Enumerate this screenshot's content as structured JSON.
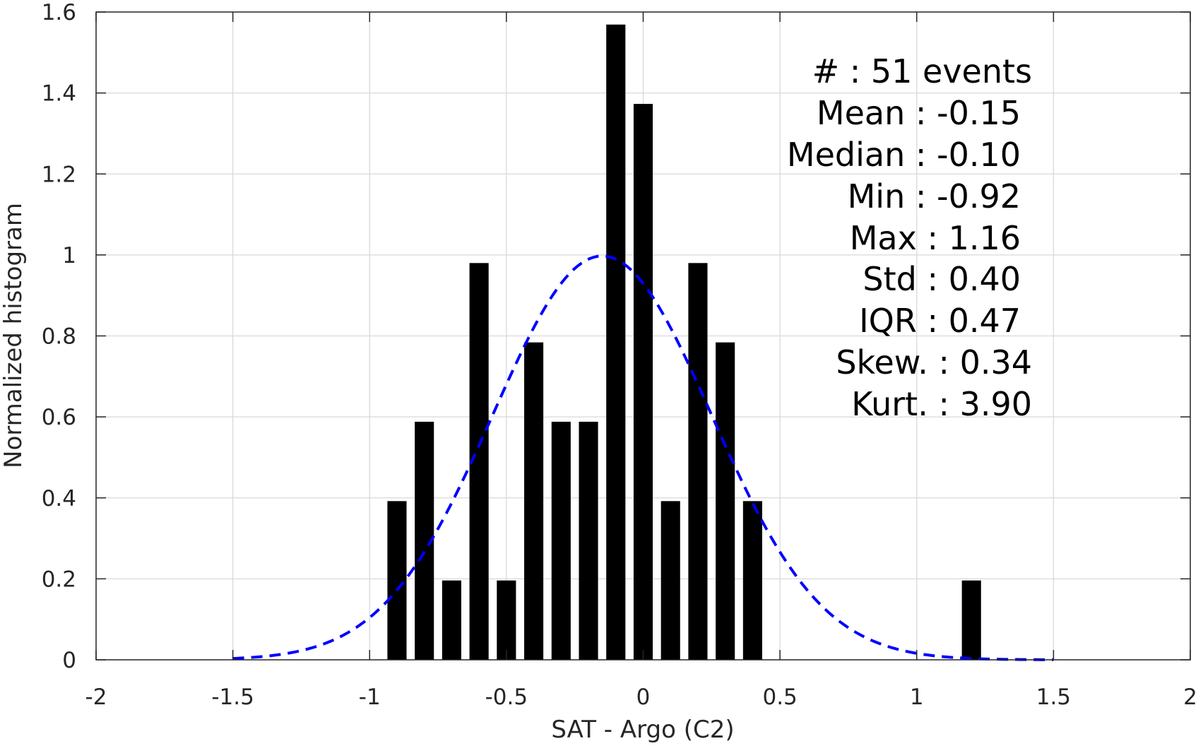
{
  "chart_data": {
    "type": "bar",
    "title": "",
    "xlabel": "SAT - Argo (C2)",
    "ylabel": "Normalized histogram",
    "xlim": [
      -2,
      2
    ],
    "ylim": [
      0,
      1.6
    ],
    "grid": true,
    "bin_width": 0.1,
    "bar_width_fraction": 0.7,
    "x_ticks": [
      -2,
      -1.5,
      -1,
      -0.5,
      0,
      0.5,
      1,
      1.5,
      2
    ],
    "x_tick_labels": [
      "-2",
      "-1.5",
      "-1",
      "-0.5",
      "0",
      "0.5",
      "1",
      "1.5",
      "2"
    ],
    "y_ticks": [
      0,
      0.2,
      0.4,
      0.6,
      0.8,
      1,
      1.2,
      1.4,
      1.6
    ],
    "y_tick_labels": [
      "0",
      "0.2",
      "0.4",
      "0.6",
      "0.8",
      "1",
      "1.2",
      "1.4",
      "1.6"
    ],
    "bar_color": "#000000",
    "bars": {
      "x": [
        -0.9,
        -0.8,
        -0.7,
        -0.6,
        -0.5,
        -0.4,
        -0.3,
        -0.2,
        -0.1,
        0.0,
        0.1,
        0.2,
        0.3,
        0.4,
        1.2
      ],
      "values": [
        0.392,
        0.588,
        0.196,
        0.98,
        0.196,
        0.784,
        0.588,
        0.588,
        1.569,
        1.373,
        0.392,
        0.98,
        0.784,
        0.392,
        0.196
      ]
    },
    "fit_curve": {
      "type": "normal",
      "mean": -0.15,
      "std": 0.4,
      "x_range": [
        -1.5,
        1.5
      ],
      "color": "#0000ff",
      "style": "dashed"
    },
    "stats": [
      {
        "label": "#  : 51 events"
      },
      {
        "label": "Mean : -0.15"
      },
      {
        "label": "Median : -0.10"
      },
      {
        "label": "Min : -0.92"
      },
      {
        "label": "Max : 1.16"
      },
      {
        "label": "Std : 0.40"
      },
      {
        "label": "IQR : 0.47"
      },
      {
        "label": "Skew. : 0.34"
      },
      {
        "label": "Kurt. : 3.90"
      }
    ]
  }
}
